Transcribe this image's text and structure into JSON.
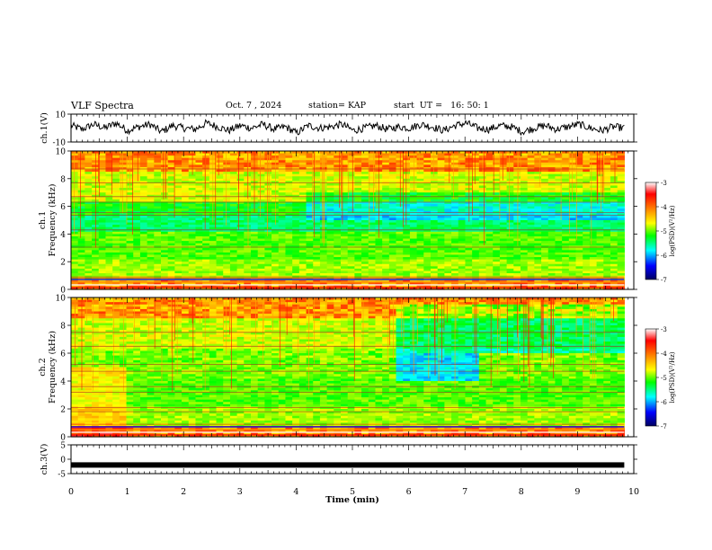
{
  "header": {
    "title": "VLF Spectra",
    "date": "Oct. 7 , 2024",
    "station": "station= KAP",
    "start_ut": "start  UT =   16: 50: 1"
  },
  "chart_data": [
    {
      "type": "line",
      "name": "ch1-waveform",
      "ylabel": "ch.1(V)",
      "ylim": [
        -10,
        10
      ],
      "yticks": [
        "10",
        "-10"
      ],
      "xlim": [
        0,
        10
      ],
      "values_note": "",
      "samples": [
        2,
        -1,
        3,
        0,
        4,
        -2,
        1,
        3,
        -3,
        2,
        0,
        -1,
        4,
        1,
        -2,
        2,
        0,
        3,
        -1,
        1,
        -4,
        2,
        0,
        1,
        3,
        -2,
        0,
        2,
        -1,
        1,
        0,
        3,
        1,
        -2,
        2,
        4,
        0,
        -1,
        2,
        1,
        -3,
        0,
        2,
        -1,
        1,
        3,
        0,
        -2,
        1,
        0
      ]
    },
    {
      "type": "heatmap",
      "name": "ch1-spectrogram",
      "ylabel": "ch.1\nFrequency (kHz)",
      "yticks": [
        "0",
        "2",
        "4",
        "6",
        "8",
        "10"
      ],
      "ylim": [
        0,
        10
      ],
      "xlim": [
        0,
        10
      ],
      "colorbar": {
        "label": "log(PSD)(V²/Hz)",
        "ticks": [
          "-3",
          "-4",
          "-5",
          "-6",
          "-7"
        ],
        "range": [
          -7,
          -3
        ]
      }
    },
    {
      "type": "heatmap",
      "name": "ch2-spectrogram",
      "ylabel": "ch.2\nFrequency (kHz)",
      "yticks": [
        "0",
        "2",
        "4",
        "6",
        "8",
        "10"
      ],
      "ylim": [
        0,
        10
      ],
      "xlim": [
        0,
        10
      ],
      "colorbar": {
        "label": "log(PSD)(V²/Hz)",
        "ticks": [
          "-3",
          "-4",
          "-5",
          "-6",
          "-7"
        ],
        "range": [
          -7,
          -3
        ]
      }
    },
    {
      "type": "line",
      "name": "ch3-waveform",
      "ylabel": "ch.3(V)",
      "ylim": [
        -5,
        5
      ],
      "yticks": [
        "5",
        "0",
        "-5"
      ],
      "xlim": [
        0,
        10
      ],
      "samples": [
        -2,
        -2
      ]
    }
  ],
  "x_axis": {
    "label": "Time  (min)",
    "ticks": [
      "0",
      "1",
      "2",
      "3",
      "4",
      "5",
      "6",
      "7",
      "8",
      "9",
      "10"
    ],
    "data_end": 9.83
  },
  "colors": {
    "colormap": [
      "#ffffff",
      "#ff0000",
      "#ff8800",
      "#ffff00",
      "#00ff00",
      "#00ffff",
      "#0000ff",
      "#000080"
    ]
  }
}
